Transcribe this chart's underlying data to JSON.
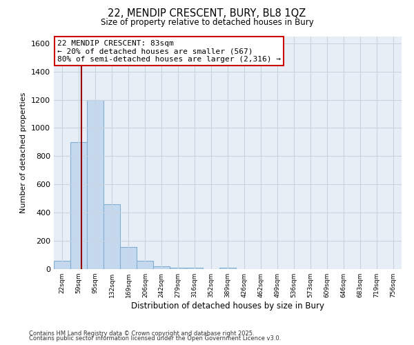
{
  "title_line1": "22, MENDIP CRESCENT, BURY, BL8 1QZ",
  "title_line2": "Size of property relative to detached houses in Bury",
  "xlabel": "Distribution of detached houses by size in Bury",
  "ylabel": "Number of detached properties",
  "bar_color": "#c5d9ee",
  "bar_edge_color": "#7fafd4",
  "background_color": "#e8eef5",
  "grid_color": "#c8d4e0",
  "annotation_line_color": "#990000",
  "annotation_box_edge_color": "#cc0000",
  "annotation_text": "22 MENDIP CRESCENT: 83sqm\n← 20% of detached houses are smaller (567)\n80% of semi-detached houses are larger (2,316) →",
  "property_size": 83,
  "categories": [
    "22sqm",
    "59sqm",
    "95sqm",
    "132sqm",
    "169sqm",
    "206sqm",
    "242sqm",
    "279sqm",
    "316sqm",
    "352sqm",
    "389sqm",
    "426sqm",
    "462sqm",
    "499sqm",
    "536sqm",
    "573sqm",
    "609sqm",
    "646sqm",
    "683sqm",
    "719sqm",
    "756sqm"
  ],
  "bin_edges": [
    22,
    59,
    95,
    132,
    169,
    206,
    242,
    279,
    316,
    352,
    389,
    426,
    462,
    499,
    536,
    573,
    609,
    646,
    683,
    719,
    756
  ],
  "bin_width": 37,
  "bar_heights": [
    60,
    900,
    1200,
    460,
    155,
    60,
    20,
    10,
    10,
    0,
    10,
    0,
    0,
    0,
    0,
    0,
    0,
    0,
    0,
    0,
    0
  ],
  "ylim": [
    0,
    1650
  ],
  "yticks": [
    0,
    200,
    400,
    600,
    800,
    1000,
    1200,
    1400,
    1600
  ],
  "footnote_line1": "Contains HM Land Registry data © Crown copyright and database right 2025.",
  "footnote_line2": "Contains public sector information licensed under the Open Government Licence v3.0."
}
